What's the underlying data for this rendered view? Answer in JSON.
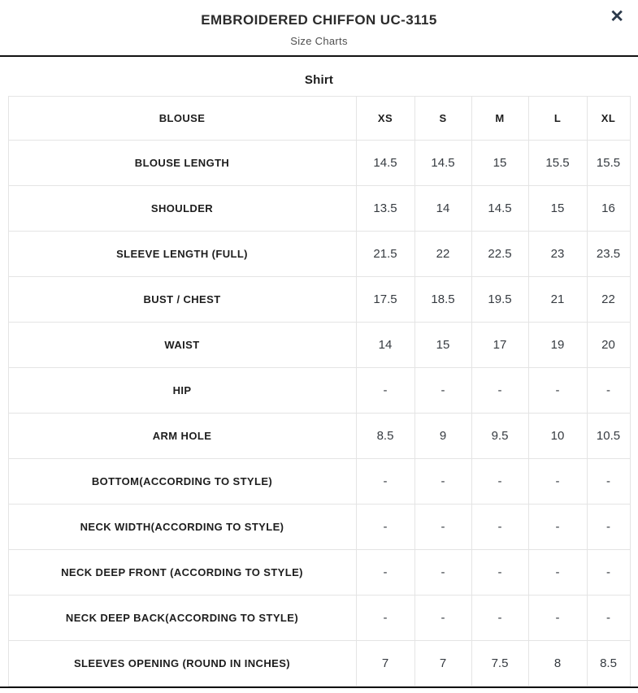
{
  "header": {
    "title": "EMBROIDERED CHIFFON UC-3115",
    "subtitle": "Size Charts",
    "close_label": "✕"
  },
  "section": {
    "title": "Shirt"
  },
  "table": {
    "header": [
      "BLOUSE",
      "XS",
      "S",
      "M",
      "L",
      "XL"
    ],
    "rows": [
      {
        "label": "BLOUSE LENGTH",
        "values": [
          "14.5",
          "14.5",
          "15",
          "15.5",
          "15.5"
        ]
      },
      {
        "label": "SHOULDER",
        "values": [
          "13.5",
          "14",
          "14.5",
          "15",
          "16"
        ]
      },
      {
        "label": "SLEEVE LENGTH (FULL)",
        "values": [
          "21.5",
          "22",
          "22.5",
          "23",
          "23.5"
        ]
      },
      {
        "label": "BUST / CHEST",
        "values": [
          "17.5",
          "18.5",
          "19.5",
          "21",
          "22"
        ]
      },
      {
        "label": "WAIST",
        "values": [
          "14",
          "15",
          "17",
          "19",
          "20"
        ]
      },
      {
        "label": "HIP",
        "values": [
          "-",
          "-",
          "-",
          "-",
          "-"
        ]
      },
      {
        "label": "ARM HOLE",
        "values": [
          "8.5",
          "9",
          "9.5",
          "10",
          "10.5"
        ]
      },
      {
        "label": "BOTTOM(ACCORDING TO STYLE)",
        "values": [
          "-",
          "-",
          "-",
          "-",
          "-"
        ]
      },
      {
        "label": "NECK WIDTH(ACCORDING TO STYLE)",
        "values": [
          "-",
          "-",
          "-",
          "-",
          "-"
        ]
      },
      {
        "label": "NECK DEEP FRONT (ACCORDING TO STYLE)",
        "values": [
          "-",
          "-",
          "-",
          "-",
          "-"
        ]
      },
      {
        "label": "NECK DEEP BACK(ACCORDING TO STYLE)",
        "values": [
          "-",
          "-",
          "-",
          "-",
          "-"
        ]
      },
      {
        "label": "SLEEVES OPENING (ROUND IN INCHES)",
        "values": [
          "7",
          "7",
          "7.5",
          "8",
          "8.5"
        ]
      }
    ]
  },
  "colors": {
    "divider": "#121212",
    "table_border": "#e4e4e4",
    "title_text": "#2b2b2b",
    "subtitle_text": "#4f4f4f",
    "close_icon": "#2c3a4b"
  }
}
